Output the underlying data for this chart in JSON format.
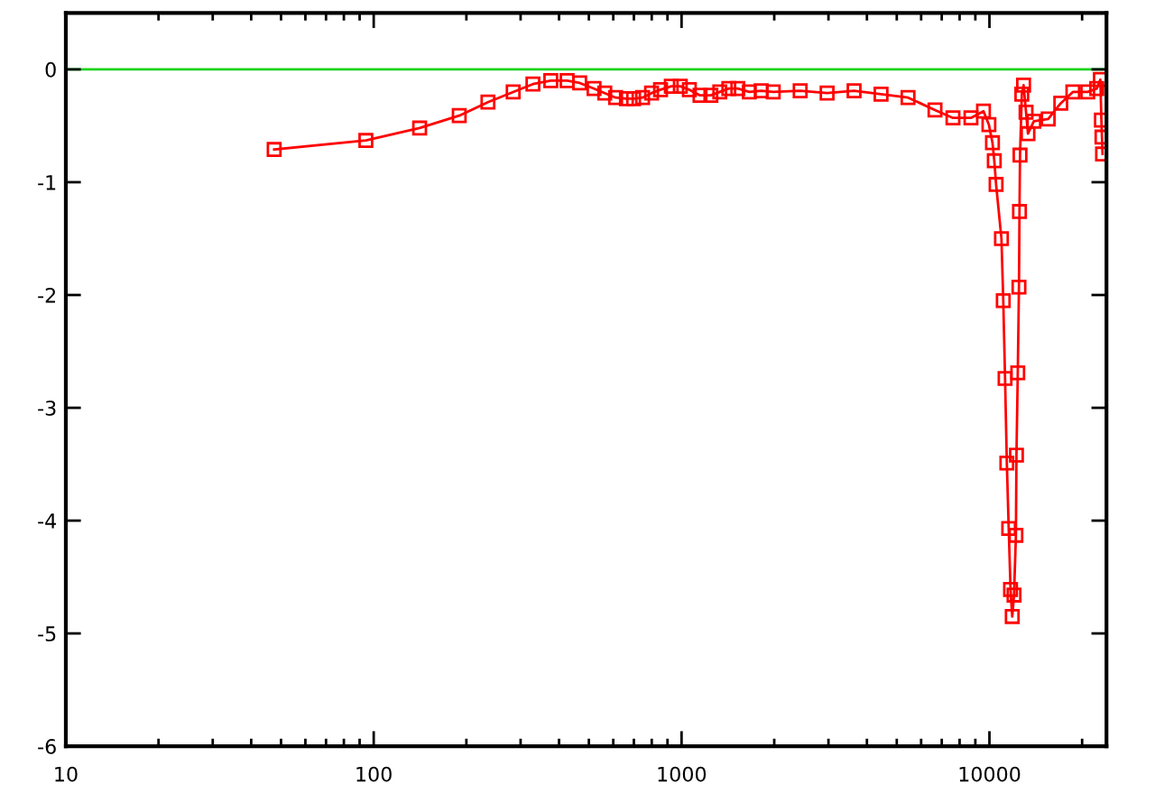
{
  "chart_data": {
    "type": "line",
    "log": "x",
    "marker": "square",
    "line_style": "solid",
    "grid": false,
    "legend": false,
    "xlim": [
      10,
      24000
    ],
    "xticks": [
      10,
      100,
      1000,
      10000
    ],
    "ylim": [
      -6,
      0.5
    ],
    "yticks": [
      -6,
      -5,
      -4,
      -3,
      -2,
      -1,
      0
    ],
    "ref_lines": [
      {
        "axis": "y",
        "value": 0,
        "color": "#1fd21f"
      }
    ],
    "series": [
      {
        "color": "#ff0000",
        "x": [
          47.5,
          94.3,
          141,
          189.6,
          235,
          283.8,
          329,
          376,
          424.9,
          466.7,
          519.6,
          563,
          610.6,
          662,
          698.6,
          747,
          799,
          854.6,
          926,
          990.6,
          1060,
          1148,
          1245,
          1331,
          1424,
          1523,
          1660,
          1814,
          1985,
          2428,
          2970,
          3634,
          4446,
          5440,
          6655,
          7613,
          8708,
          9566,
          9960,
          10230,
          10370,
          10510,
          10940,
          11090,
          11240,
          11390,
          11550,
          11710,
          11860,
          12020,
          12190,
          12240,
          12360,
          12470,
          12520,
          12570,
          12740,
          12910,
          13150,
          13340,
          13940,
          15520,
          17050,
          18660,
          20860,
          22310,
          22920,
          23100,
          23200,
          23300
        ],
        "values": [
          -0.71,
          -0.63,
          -0.52,
          -0.41,
          -0.29,
          -0.2,
          -0.13,
          -0.1,
          -0.1,
          -0.12,
          -0.17,
          -0.21,
          -0.25,
          -0.26,
          -0.26,
          -0.25,
          -0.21,
          -0.18,
          -0.15,
          -0.15,
          -0.18,
          -0.23,
          -0.23,
          -0.2,
          -0.17,
          -0.17,
          -0.2,
          -0.19,
          -0.2,
          -0.19,
          -0.21,
          -0.19,
          -0.22,
          -0.25,
          -0.36,
          -0.43,
          -0.43,
          -0.37,
          -0.49,
          -0.65,
          -0.81,
          -1.02,
          -1.5,
          -2.05,
          -2.74,
          -3.49,
          -4.07,
          -4.61,
          -4.85,
          -4.66,
          -4.13,
          -3.42,
          -2.69,
          -1.93,
          -1.26,
          -0.76,
          -0.22,
          -0.14,
          -0.38,
          -0.57,
          -0.46,
          -0.44,
          -0.3,
          -0.2,
          -0.2,
          -0.17,
          -0.09,
          -0.45,
          -0.6,
          -0.75
        ]
      }
    ]
  }
}
